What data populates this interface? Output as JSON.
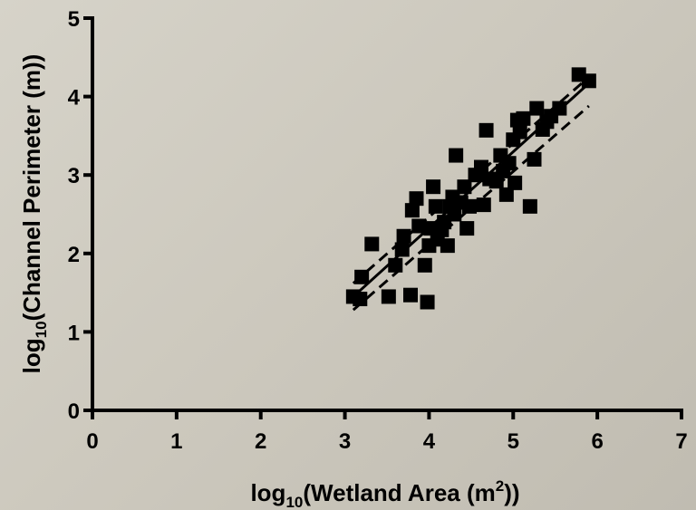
{
  "chart_data": {
    "type": "scatter",
    "xlabel": {
      "pre": "log",
      "sub": "10",
      "main": "(Wetland Area (m",
      "sup": "2",
      "post": "))"
    },
    "ylabel": {
      "pre": "log",
      "sub": "10",
      "main": "(Channel Perimeter (m))"
    },
    "xlim": [
      0,
      7
    ],
    "ylim": [
      0,
      5
    ],
    "xticks": [
      0,
      1,
      2,
      3,
      4,
      5,
      6,
      7
    ],
    "yticks": [
      0,
      1,
      2,
      3,
      4,
      5
    ],
    "grid": false,
    "marker": "square",
    "marker_color": "#000000",
    "points": [
      [
        3.1,
        1.45
      ],
      [
        3.18,
        1.42
      ],
      [
        3.2,
        1.7
      ],
      [
        3.32,
        2.12
      ],
      [
        3.52,
        1.45
      ],
      [
        3.6,
        1.85
      ],
      [
        3.68,
        2.05
      ],
      [
        3.7,
        2.22
      ],
      [
        3.78,
        1.47
      ],
      [
        3.8,
        2.55
      ],
      [
        3.85,
        2.7
      ],
      [
        3.88,
        2.35
      ],
      [
        3.95,
        1.85
      ],
      [
        3.98,
        1.38
      ],
      [
        4.0,
        2.1
      ],
      [
        4.02,
        2.32
      ],
      [
        4.05,
        2.85
      ],
      [
        4.08,
        2.6
      ],
      [
        4.1,
        2.18
      ],
      [
        4.15,
        2.3
      ],
      [
        4.18,
        2.4
      ],
      [
        4.22,
        2.1
      ],
      [
        4.25,
        2.6
      ],
      [
        4.28,
        2.72
      ],
      [
        4.3,
        2.5
      ],
      [
        4.32,
        3.25
      ],
      [
        4.38,
        2.65
      ],
      [
        4.42,
        2.85
      ],
      [
        4.45,
        2.32
      ],
      [
        4.48,
        2.6
      ],
      [
        4.55,
        3.0
      ],
      [
        4.62,
        3.1
      ],
      [
        4.65,
        2.62
      ],
      [
        4.68,
        3.57
      ],
      [
        4.72,
        2.95
      ],
      [
        4.8,
        2.92
      ],
      [
        4.85,
        3.25
      ],
      [
        4.88,
        3.05
      ],
      [
        4.92,
        2.75
      ],
      [
        4.95,
        3.15
      ],
      [
        5.0,
        3.45
      ],
      [
        5.02,
        2.9
      ],
      [
        5.05,
        3.7
      ],
      [
        5.08,
        3.55
      ],
      [
        5.12,
        3.72
      ],
      [
        5.2,
        2.6
      ],
      [
        5.25,
        3.2
      ],
      [
        5.28,
        3.85
      ],
      [
        5.35,
        3.58
      ],
      [
        5.4,
        3.68
      ],
      [
        5.45,
        3.75
      ],
      [
        5.55,
        3.85
      ],
      [
        5.78,
        4.28
      ],
      [
        5.9,
        4.2
      ]
    ],
    "fit_line": {
      "x": [
        3.1,
        5.9
      ],
      "y": [
        1.45,
        4.17
      ],
      "style": "solid"
    },
    "confidence_bands": [
      {
        "x": [
          3.1,
          5.9
        ],
        "y": [
          1.62,
          4.25
        ],
        "style": "dashed"
      },
      {
        "x": [
          3.1,
          5.9
        ],
        "y": [
          1.28,
          3.88
        ],
        "style": "dashed"
      }
    ]
  }
}
